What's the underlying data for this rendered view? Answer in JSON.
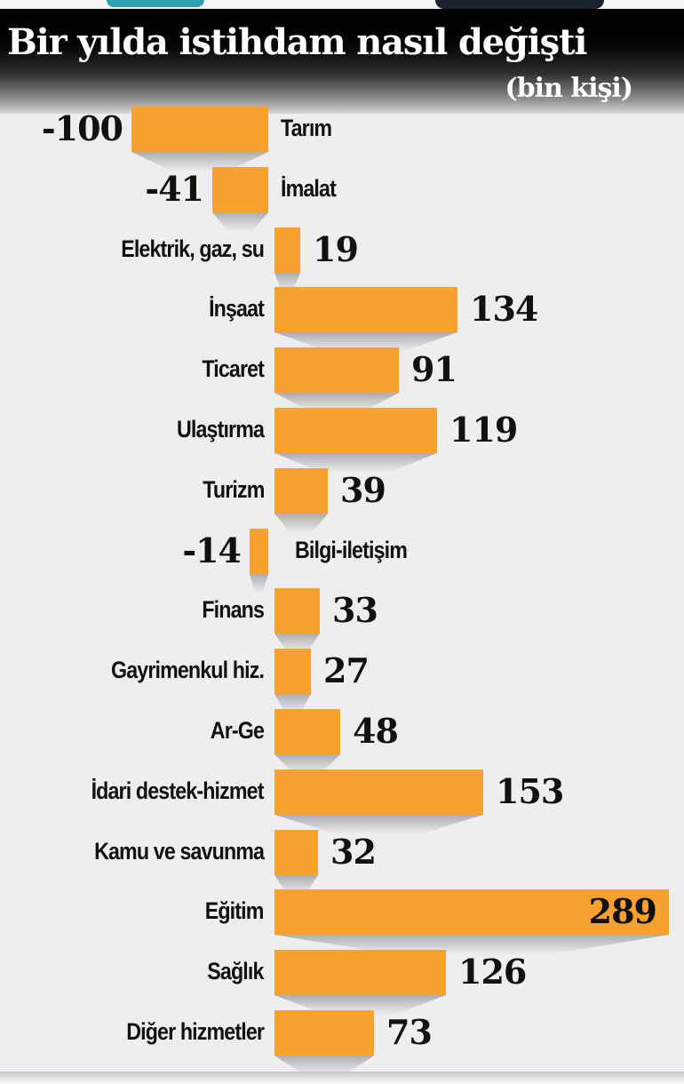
{
  "header": {
    "title": "Bir yılda istihdam nasıl değişti",
    "subtitle": "(bin kişi)"
  },
  "colors": {
    "bar": "#f8a12f",
    "background": "#eeeef0",
    "header": "#000000",
    "text": "#111111"
  },
  "chart_data": {
    "type": "bar",
    "orientation": "horizontal",
    "title": "Bir yılda istihdam nasıl değişti",
    "subtitle": "(bin kişi)",
    "xlabel": "",
    "ylabel": "",
    "unit": "bin kişi",
    "grid": false,
    "legend": null,
    "categories": [
      "Tarım",
      "İmalat",
      "Elektrik, gaz, su",
      "İnşaat",
      "Ticaret",
      "Ulaştırma",
      "Turizm",
      "Bilgi-iletişim",
      "Finans",
      "Gayrimenkul hiz.",
      "Ar-Ge",
      "İdari destek-hizmet",
      "Kamu ve savunma",
      "Eğitim",
      "Sağlık",
      "Diğer hizmetler"
    ],
    "values": [
      -100,
      -41,
      19,
      134,
      91,
      119,
      39,
      -14,
      33,
      27,
      48,
      153,
      32,
      289,
      126,
      73
    ],
    "value_labels": [
      "-100",
      "-41",
      "19",
      "134",
      "91",
      "119",
      "39",
      "-14",
      "33",
      "27",
      "48",
      "153",
      "32",
      "289",
      "126",
      "73"
    ]
  }
}
